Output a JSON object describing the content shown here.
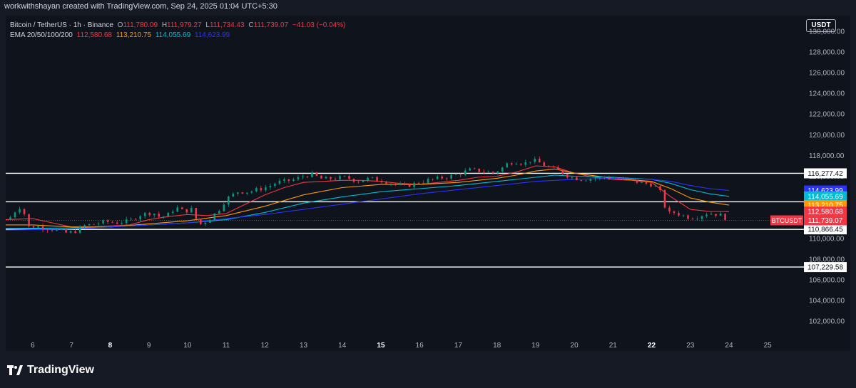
{
  "header": {
    "attribution": "workwithshayan created with TradingView.com, Sep 24, 2025 01:04 UTC+5:30"
  },
  "legend": {
    "symbol": "Bitcoin / TetherUS · 1h · Binance",
    "open_label": "O",
    "open": "111,780.09",
    "high_label": "H",
    "high": "111,979.27",
    "low_label": "L",
    "low": "111,734.43",
    "close_label": "C",
    "close": "111,739.07",
    "change": "−41.03 (−0.04%)",
    "ema_label": "EMA 20/50/100/200",
    "ema20": "112,580.68",
    "ema50": "113,210.75",
    "ema100": "114,055.69",
    "ema200": "114,623.99"
  },
  "currency": "USDT",
  "footer": {
    "brand": "TradingView"
  },
  "colors": {
    "up": "#089981",
    "down": "#f23645",
    "ema20": "#f23645",
    "ema50": "#ff9800",
    "ema100": "#00bcd4",
    "ema200": "#2933ff"
  },
  "chart_data": {
    "type": "candlestick",
    "ylim": [
      100500,
      131500
    ],
    "xlim": [
      5.3,
      25.9
    ],
    "price_ticks": [
      102000,
      104000,
      106000,
      108000,
      110000,
      112000,
      114000,
      116000,
      118000,
      120000,
      122000,
      124000,
      126000,
      128000,
      130000
    ],
    "price_tick_labels": [
      "102,000.00",
      "104,000.00",
      "106,000.00",
      "108,000.00",
      "110,000.00",
      "112,000.00",
      "114,000.00",
      "116,000.00",
      "118,000.00",
      "120,000.00",
      "122,000.00",
      "124,000.00",
      "126,000.00",
      "128,000.00",
      "130,000.00"
    ],
    "x_ticks": [
      {
        "label": "6",
        "day": 6,
        "bold": false
      },
      {
        "label": "7",
        "day": 7,
        "bold": false
      },
      {
        "label": "8",
        "day": 8,
        "bold": true
      },
      {
        "label": "9",
        "day": 9,
        "bold": false
      },
      {
        "label": "10",
        "day": 10,
        "bold": false
      },
      {
        "label": "11",
        "day": 11,
        "bold": false
      },
      {
        "label": "12",
        "day": 12,
        "bold": false
      },
      {
        "label": "13",
        "day": 13,
        "bold": false
      },
      {
        "label": "14",
        "day": 14,
        "bold": false
      },
      {
        "label": "15",
        "day": 15,
        "bold": true
      },
      {
        "label": "16",
        "day": 16,
        "bold": false
      },
      {
        "label": "17",
        "day": 17,
        "bold": false
      },
      {
        "label": "18",
        "day": 18,
        "bold": false
      },
      {
        "label": "19",
        "day": 19,
        "bold": false
      },
      {
        "label": "20",
        "day": 20,
        "bold": false
      },
      {
        "label": "21",
        "day": 21,
        "bold": false
      },
      {
        "label": "22",
        "day": 22,
        "bold": true
      },
      {
        "label": "23",
        "day": 23,
        "bold": false
      },
      {
        "label": "24",
        "day": 24,
        "bold": false
      },
      {
        "label": "25",
        "day": 25,
        "bold": false
      }
    ],
    "horizontal_levels": [
      {
        "value": 116277.42,
        "label": "116,277.42"
      },
      {
        "value": 113527.58,
        "label": "113,527.58"
      },
      {
        "value": 110866.45,
        "label": "110,866.45"
      },
      {
        "value": 107229.58,
        "label": "107,229.58"
      }
    ],
    "price_tags": [
      {
        "value": 114623.99,
        "label": "114,623.99",
        "color": "#2933ff"
      },
      {
        "value": 114055.69,
        "label": "114,055.69",
        "color": "#00bcd4"
      },
      {
        "value": 113210.75,
        "label": "113,210.75",
        "color": "#ff9800"
      },
      {
        "value": 112580.68,
        "label": "112,580.68",
        "color": "#f23645"
      },
      {
        "value": 111739.07,
        "label": "111,739.07",
        "color": "#f23645"
      }
    ],
    "symbol_tag": "BTCUSDT",
    "last_price": 111739.07,
    "series": [
      {
        "name": "BTCUSDT",
        "kind": "close",
        "x": [
          5.3,
          5.5,
          5.6,
          5.75,
          5.9,
          6.1,
          6.3,
          6.6,
          6.9,
          7.1,
          7.3,
          7.6,
          7.9,
          8.2,
          8.5,
          8.8,
          9.1,
          9.3,
          9.5,
          9.7,
          9.9,
          10.1,
          10.3,
          10.5,
          10.6,
          10.8,
          11.0,
          11.3,
          11.6,
          11.9,
          12.1,
          12.3,
          12.5,
          12.8,
          13.0,
          13.2,
          13.5,
          13.8,
          14.1,
          14.4,
          14.7,
          15.0,
          15.3,
          15.6,
          15.9,
          16.2,
          16.5,
          16.8,
          17.0,
          17.3,
          17.6,
          17.9,
          18.1,
          18.3,
          18.5,
          18.7,
          18.9,
          19.1,
          19.3,
          19.6,
          19.9,
          20.2,
          20.5,
          20.8,
          21.1,
          21.4,
          21.7,
          22.0,
          22.2,
          22.4,
          22.6,
          22.8,
          23.0,
          23.2,
          23.4,
          23.6,
          23.8,
          24.0
        ],
        "y": [
          111800,
          112200,
          113200,
          112700,
          111100,
          111200,
          111000,
          110800,
          110500,
          110700,
          111200,
          111400,
          111600,
          111500,
          111700,
          112300,
          112500,
          112000,
          112300,
          113000,
          112600,
          112800,
          111300,
          111700,
          112000,
          112700,
          113800,
          114500,
          114500,
          114800,
          115000,
          115400,
          115500,
          115700,
          116000,
          116200,
          115700,
          115800,
          115900,
          115500,
          115800,
          115600,
          115300,
          115000,
          115300,
          115600,
          115800,
          116000,
          116200,
          116600,
          116500,
          116300,
          116700,
          117300,
          117400,
          117200,
          117600,
          117300,
          116900,
          116500,
          115900,
          115700,
          115800,
          115900,
          115700,
          115600,
          115400,
          115200,
          114700,
          112400,
          112500,
          112200,
          112000,
          112100,
          112400,
          112400,
          112200,
          111739.07
        ]
      },
      {
        "name": "EMA 20",
        "kind": "ema20",
        "x": [
          5.3,
          6.0,
          6.5,
          7.0,
          7.5,
          8.0,
          8.5,
          9.0,
          9.5,
          10.0,
          10.5,
          11.0,
          11.5,
          12.0,
          12.5,
          13.0,
          13.5,
          14.0,
          14.5,
          15.0,
          15.5,
          16.0,
          16.5,
          17.0,
          17.5,
          18.0,
          18.5,
          19.0,
          19.5,
          20.0,
          20.5,
          21.0,
          21.5,
          22.0,
          22.5,
          23.0,
          23.5,
          24.0
        ],
        "y": [
          111800,
          111900,
          111500,
          111100,
          111100,
          111200,
          111300,
          111800,
          112100,
          112300,
          112200,
          112400,
          113300,
          114200,
          114900,
          115400,
          115500,
          115600,
          115600,
          115500,
          115300,
          115200,
          115400,
          115600,
          115900,
          116000,
          116400,
          117000,
          116900,
          116300,
          115900,
          115700,
          115600,
          115400,
          114000,
          112800,
          112600,
          112580
        ]
      },
      {
        "name": "EMA 50",
        "kind": "ema50",
        "x": [
          5.3,
          6.0,
          7.0,
          8.0,
          9.0,
          10.0,
          11.0,
          12.0,
          13.0,
          14.0,
          15.0,
          16.0,
          17.0,
          18.0,
          18.5,
          19.0,
          19.5,
          20.0,
          21.0,
          22.0,
          22.5,
          23.0,
          23.5,
          24.0
        ],
        "y": [
          111300,
          111300,
          111100,
          111100,
          111400,
          111700,
          112200,
          113100,
          114200,
          114900,
          115200,
          115200,
          115400,
          115800,
          116100,
          116500,
          116700,
          116300,
          115800,
          115500,
          114800,
          113900,
          113500,
          113210
        ]
      },
      {
        "name": "EMA 100",
        "kind": "ema100",
        "x": [
          5.3,
          7.0,
          8.0,
          9.0,
          10.0,
          11.0,
          12.0,
          13.0,
          14.0,
          15.0,
          16.0,
          17.0,
          18.0,
          19.0,
          19.5,
          20.0,
          21.0,
          22.0,
          22.5,
          23.0,
          23.5,
          24.0
        ],
        "y": [
          110950,
          111000,
          111100,
          111300,
          111500,
          111800,
          112500,
          113400,
          114000,
          114500,
          114800,
          115100,
          115500,
          115900,
          116100,
          116000,
          115900,
          115700,
          115300,
          114700,
          114300,
          114055
        ]
      },
      {
        "name": "EMA 200",
        "kind": "ema200",
        "x": [
          5.3,
          7.0,
          8.0,
          9.0,
          10.0,
          11.0,
          12.0,
          13.0,
          14.0,
          15.0,
          16.0,
          17.0,
          18.0,
          19.0,
          20.0,
          21.0,
          22.0,
          22.5,
          23.0,
          23.5,
          24.0
        ],
        "y": [
          110800,
          110900,
          111100,
          111300,
          111500,
          111900,
          112300,
          112800,
          113300,
          113800,
          114300,
          114700,
          115100,
          115500,
          115700,
          115800,
          115700,
          115500,
          115100,
          114800,
          114623
        ]
      }
    ]
  }
}
